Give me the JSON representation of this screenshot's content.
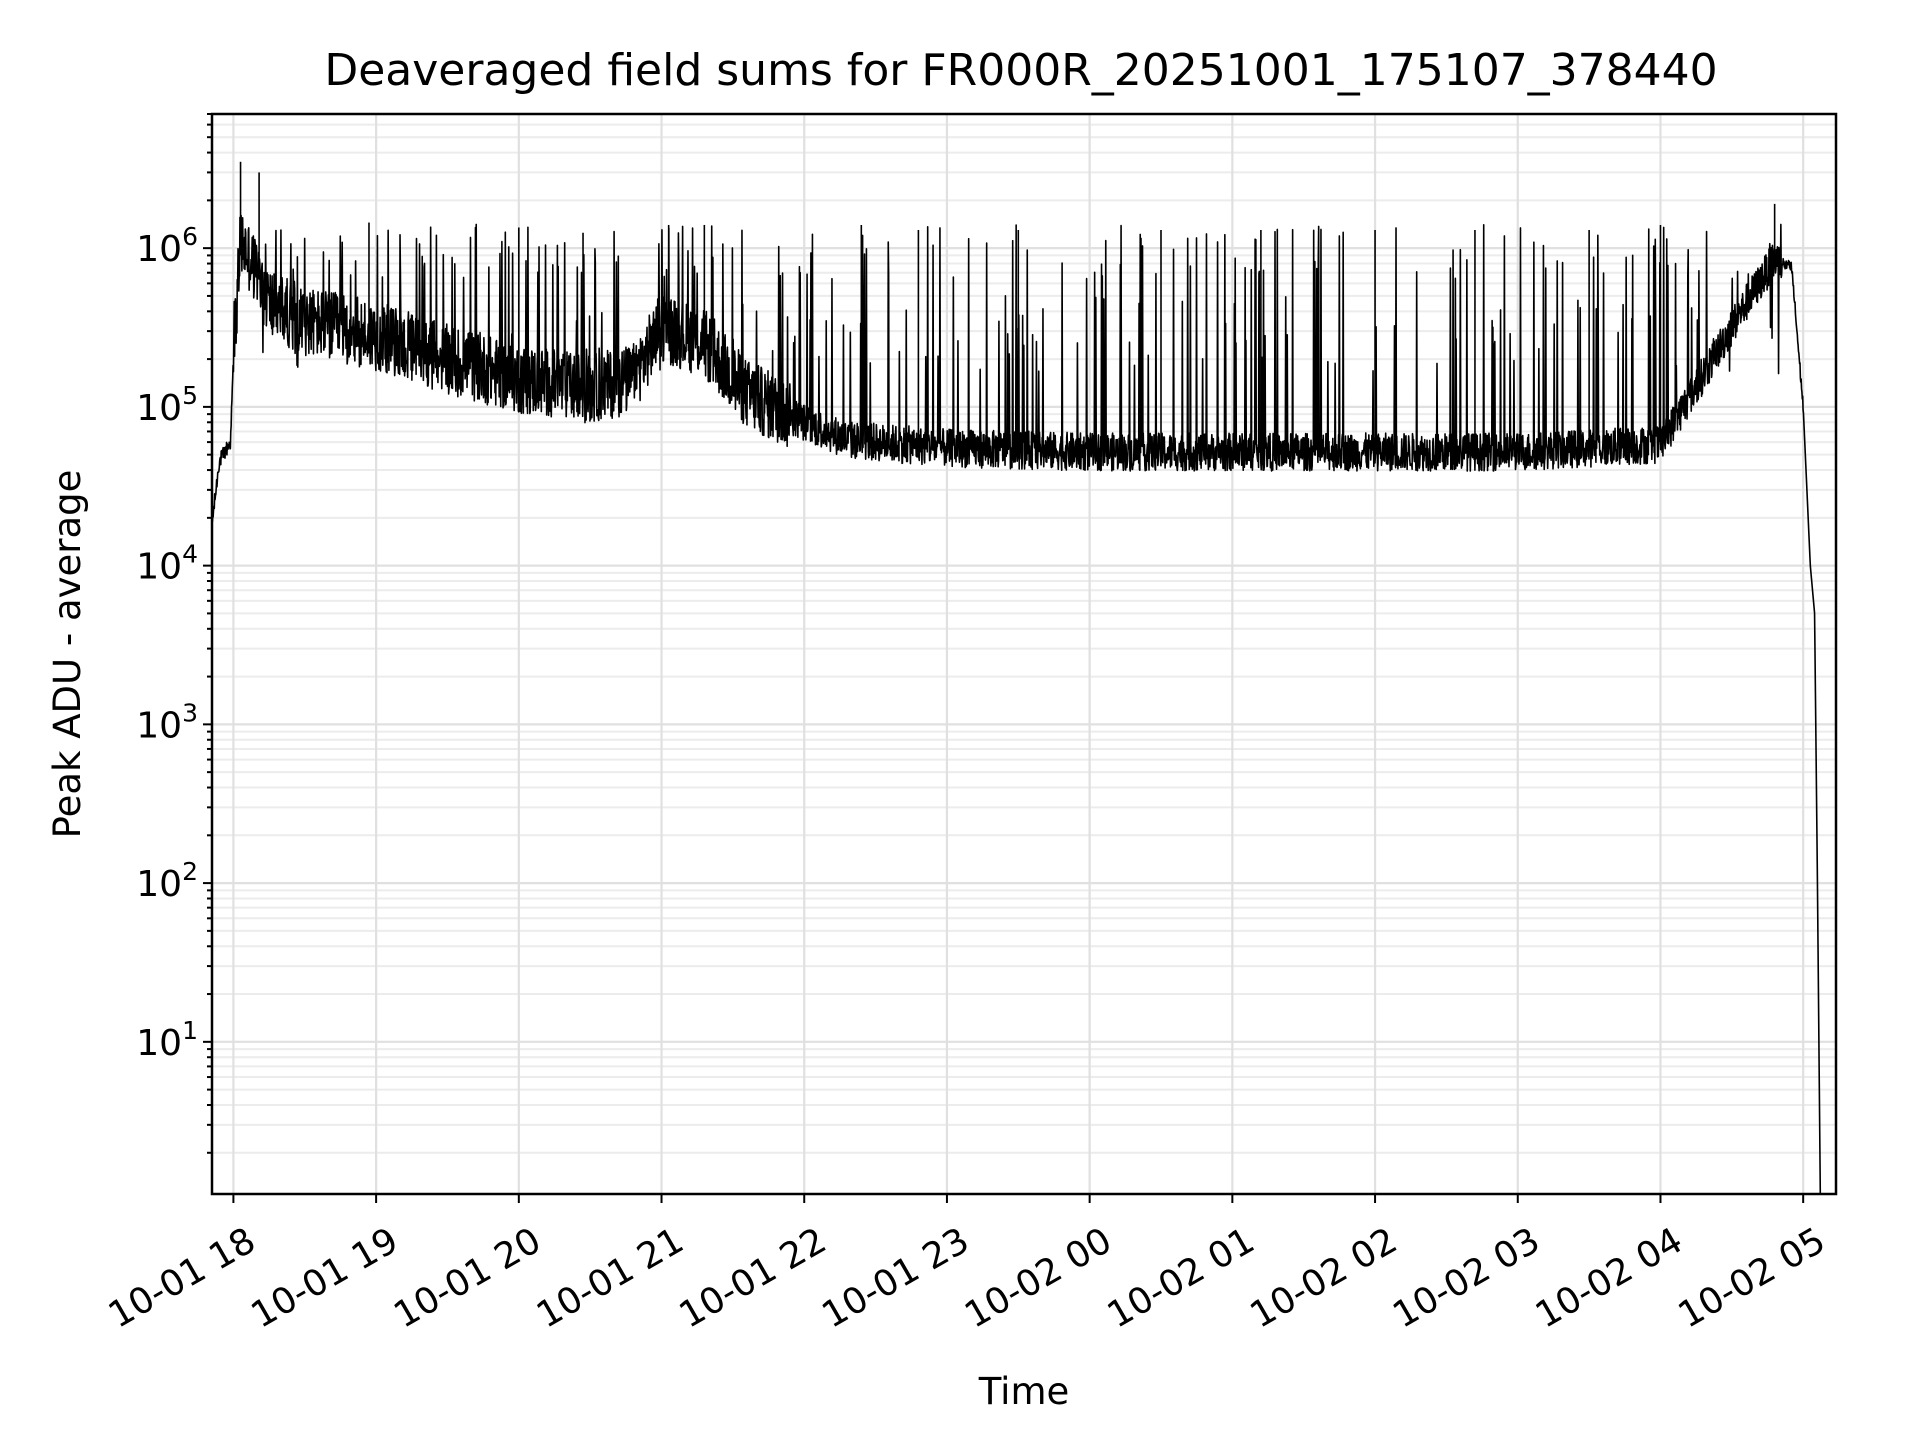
{
  "chart_data": {
    "type": "line",
    "title": "Deaveraged field sums for FR000R_20251001_175107_378440",
    "xlabel": "Time",
    "ylabel": "Peak ADU - average",
    "yscale": "log",
    "ylim": [
      1.1,
      7000000
    ],
    "xlim_hours": [
      17.85,
      29.23
    ],
    "grid": true,
    "x_ticks": [
      {
        "label": "10-01 18",
        "hour": 18
      },
      {
        "label": "10-01 19",
        "hour": 19
      },
      {
        "label": "10-01 20",
        "hour": 20
      },
      {
        "label": "10-01 21",
        "hour": 21
      },
      {
        "label": "10-01 22",
        "hour": 22
      },
      {
        "label": "10-01 23",
        "hour": 23
      },
      {
        "label": "10-02 00",
        "hour": 24
      },
      {
        "label": "10-02 01",
        "hour": 25
      },
      {
        "label": "10-02 02",
        "hour": 26
      },
      {
        "label": "10-02 03",
        "hour": 27
      },
      {
        "label": "10-02 04",
        "hour": 28
      },
      {
        "label": "10-02 05",
        "hour": 29
      }
    ],
    "y_ticks": [
      {
        "base": "10",
        "exp": "1",
        "value": 10
      },
      {
        "base": "10",
        "exp": "2",
        "value": 100
      },
      {
        "base": "10",
        "exp": "3",
        "value": 1000
      },
      {
        "base": "10",
        "exp": "4",
        "value": 10000
      },
      {
        "base": "10",
        "exp": "5",
        "value": 100000
      },
      {
        "base": "10",
        "exp": "6",
        "value": 1000000
      }
    ],
    "series": [
      {
        "name": "deaveraged field sum",
        "color": "#000000",
        "envelope": [
          {
            "hour": 17.85,
            "value": 18000
          },
          {
            "hour": 17.9,
            "value": 45000
          },
          {
            "hour": 17.98,
            "value": 60000
          },
          {
            "hour": 18.0,
            "value": 200000
          },
          {
            "hour": 18.05,
            "value": 1100000
          },
          {
            "hour": 18.12,
            "value": 850000
          },
          {
            "hour": 18.25,
            "value": 450000
          },
          {
            "hour": 18.5,
            "value": 350000
          },
          {
            "hour": 19.0,
            "value": 280000
          },
          {
            "hour": 19.5,
            "value": 200000
          },
          {
            "hour": 20.0,
            "value": 150000
          },
          {
            "hour": 20.5,
            "value": 130000
          },
          {
            "hour": 20.8,
            "value": 150000
          },
          {
            "hour": 21.0,
            "value": 320000
          },
          {
            "hour": 21.3,
            "value": 250000
          },
          {
            "hour": 21.6,
            "value": 120000
          },
          {
            "hour": 22.0,
            "value": 80000
          },
          {
            "hour": 22.3,
            "value": 62000
          },
          {
            "hour": 23.0,
            "value": 55000
          },
          {
            "hour": 24.0,
            "value": 52000
          },
          {
            "hour": 27.0,
            "value": 52000
          },
          {
            "hour": 28.0,
            "value": 58000
          },
          {
            "hour": 28.3,
            "value": 160000
          },
          {
            "hour": 28.6,
            "value": 450000
          },
          {
            "hour": 28.8,
            "value": 850000
          },
          {
            "hour": 28.92,
            "value": 750000
          },
          {
            "hour": 29.0,
            "value": 100000
          },
          {
            "hour": 29.05,
            "value": 10000
          },
          {
            "hour": 29.08,
            "value": 5000
          },
          {
            "hour": 29.1,
            "value": 100
          },
          {
            "hour": 29.12,
            "value": 1.1
          }
        ],
        "peak_spikes": [
          {
            "hour": 18.05,
            "value": 3500000
          },
          {
            "hour": 18.18,
            "value": 3000000
          },
          {
            "hour": 18.95,
            "value": 1450000
          },
          {
            "hour": 20.0,
            "value": 1350000
          },
          {
            "hour": 20.45,
            "value": 1250000
          },
          {
            "hour": 21.05,
            "value": 1400000
          },
          {
            "hour": 21.3,
            "value": 1400000
          },
          {
            "hour": 22.4,
            "value": 1400000
          },
          {
            "hour": 22.8,
            "value": 1300000
          },
          {
            "hour": 23.5,
            "value": 1300000
          },
          {
            "hour": 24.5,
            "value": 1300000
          },
          {
            "hour": 25.2,
            "value": 1300000
          },
          {
            "hour": 26.0,
            "value": 1300000
          },
          {
            "hour": 26.7,
            "value": 1300000
          },
          {
            "hour": 27.5,
            "value": 1300000
          },
          {
            "hour": 28.0,
            "value": 1400000
          },
          {
            "hour": 28.8,
            "value": 1900000
          }
        ]
      }
    ]
  }
}
